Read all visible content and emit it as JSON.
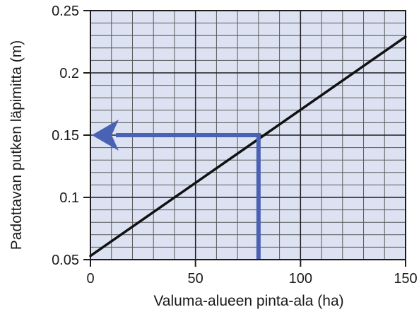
{
  "chart_data": {
    "type": "line",
    "title": "",
    "xlabel": "Valuma-alueen pinta-ala (ha)",
    "ylabel": "Padottavan putken läpimitta (m)",
    "xlim": [
      0,
      150
    ],
    "ylim": [
      0.05,
      0.25
    ],
    "x_ticks": [
      "0",
      "50",
      "100",
      "150"
    ],
    "y_ticks": [
      "0.05",
      "0.1",
      "0.15",
      "0.2",
      "0.25"
    ],
    "x_tick_values": [
      0,
      50,
      100,
      150
    ],
    "y_tick_values": [
      0.05,
      0.1,
      0.15,
      0.2,
      0.25
    ],
    "grid": true,
    "minor_grid_x_step": 10,
    "minor_grid_y_step": 0.01,
    "series": [
      {
        "x": [
          0,
          150
        ],
        "y": [
          0.053,
          0.229
        ]
      }
    ],
    "annotation_arrow": {
      "from_x": 80,
      "from_y": 0.05,
      "corner_x": 80,
      "corner_y": 0.15,
      "to_x": 0,
      "to_y": 0.15
    },
    "colors": {
      "plot_background": "#dde2f2",
      "minor_grid": "#5a5a5a",
      "major_grid": "#1e1e1e",
      "line": "#111111",
      "arrow": "#4a62b4"
    }
  }
}
